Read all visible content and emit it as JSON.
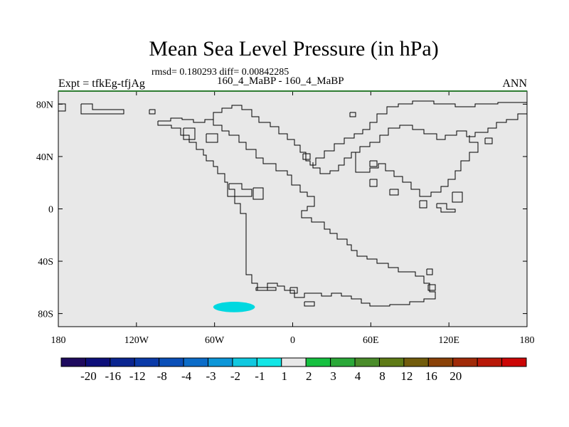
{
  "map": {
    "title": "Mean Sea Level Pressure (in hPa)",
    "stats": "rmsd= 0.180293 diff= 0.00842285",
    "left_label": "Expt = tfkEg-tfjAg",
    "center_label": "160_4_MaBP - 160_4_MaBP",
    "right_label": "ANN",
    "background_color": "#e8e8e8",
    "frame_color": "#2e7d32",
    "x_ticks": [
      {
        "value": -180,
        "label": "180"
      },
      {
        "value": -120,
        "label": "120W"
      },
      {
        "value": -60,
        "label": "60W"
      },
      {
        "value": 0,
        "label": "0"
      },
      {
        "value": 60,
        "label": "60E"
      },
      {
        "value": 120,
        "label": "120E"
      },
      {
        "value": 180,
        "label": "180"
      }
    ],
    "y_ticks": [
      {
        "value": 80,
        "label": "80N"
      },
      {
        "value": 40,
        "label": "40N"
      },
      {
        "value": 0,
        "label": "0"
      },
      {
        "value": -40,
        "label": "40S"
      },
      {
        "value": -80,
        "label": "80S"
      }
    ],
    "lon_range": [
      -180,
      180
    ],
    "lat_range": [
      -90,
      90
    ],
    "anomaly": {
      "lon_center": -45,
      "lat_center": -75,
      "lon_half_width": 16,
      "lat_half_height": 4,
      "color": "#00d8e0",
      "interval": "-2 to -1"
    }
  },
  "colorbar": {
    "colors": [
      "#1e0a5e",
      "#0d0f7a",
      "#0a2590",
      "#0a3aa8",
      "#0a4fb8",
      "#0b6cc8",
      "#0c96d8",
      "#10c8e0",
      "#12e6e6",
      "#e8e8e8",
      "#16c040",
      "#2aa838",
      "#4a8c2a",
      "#5e7a16",
      "#725c0c",
      "#8a4208",
      "#a02a08",
      "#b81808",
      "#cc0606"
    ],
    "labels": [
      "-20",
      "-16",
      "-12",
      "-8",
      "-4",
      "-3",
      "-2",
      "-1",
      "1",
      "2",
      "3",
      "4",
      "8",
      "12",
      "16",
      "20"
    ]
  }
}
